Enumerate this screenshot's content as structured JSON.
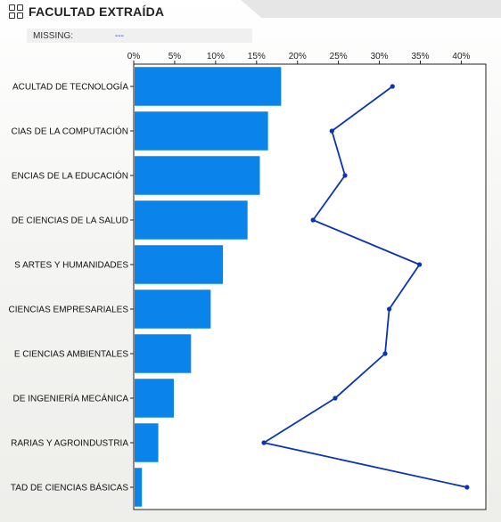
{
  "header": {
    "title": "FACULTAD EXTRAÍDA",
    "icon": "grid-icon"
  },
  "missing": {
    "label": "MISSING:",
    "value": "---"
  },
  "chart_data": {
    "type": "bar",
    "orientation": "horizontal",
    "x_ticks": [
      "0%",
      "5%",
      "10%",
      "15%",
      "20%",
      "25%",
      "30%",
      "35%",
      "40%"
    ],
    "xlim": [
      0,
      43
    ],
    "grid": false,
    "categories": [
      "ACULTAD DE TECNOLOGÍA",
      "CIAS DE LA COMPUTACIÓN",
      "ENCIAS  DE LA EDUCACIÓN",
      "DE CIENCIAS DE LA SALUD",
      "S ARTES Y HUMANIDADES",
      "CIENCIAS EMPRESARIALES",
      "E CIENCIAS AMBIENTALES",
      "DE INGENIERÍA MECÁNICA",
      "RARIAS Y AGROINDUSTRIA",
      "TAD DE CIENCIAS  BÁSICAS"
    ],
    "series": [
      {
        "type": "bar",
        "color": "#0a83ea",
        "values": [
          18.0,
          16.4,
          15.4,
          13.9,
          10.9,
          9.4,
          7.0,
          4.9,
          3.0,
          1.0
        ]
      },
      {
        "type": "line",
        "color": "#0b34b5",
        "values": [
          31.6,
          24.2,
          25.8,
          21.9,
          34.9,
          31.2,
          30.7,
          24.6,
          15.9,
          40.7
        ]
      }
    ]
  }
}
